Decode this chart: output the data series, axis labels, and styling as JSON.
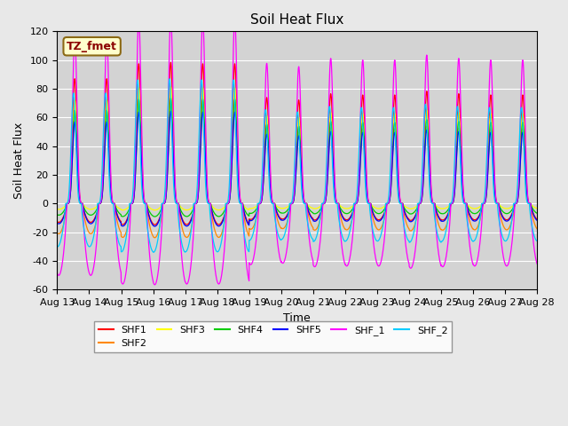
{
  "title": "Soil Heat Flux",
  "xlabel": "Time",
  "ylabel": "Soil Heat Flux",
  "ylim": [
    -60,
    120
  ],
  "yticks": [
    -60,
    -40,
    -20,
    0,
    20,
    40,
    60,
    80,
    100,
    120
  ],
  "xtick_labels": [
    "Aug 13",
    "Aug 14",
    "Aug 15",
    "Aug 16",
    "Aug 17",
    "Aug 18",
    "Aug 19",
    "Aug 20",
    "Aug 21",
    "Aug 22",
    "Aug 23",
    "Aug 24",
    "Aug 25",
    "Aug 26",
    "Aug 27",
    "Aug 28"
  ],
  "n_days": 15,
  "legend_label": "TZ_fmet",
  "legend_bg": "#ffffcc",
  "legend_border": "#8b6914",
  "legend_text_color": "#8b0000",
  "fig_bg": "#e8e8e8",
  "plot_bg": "#d3d3d3",
  "series": [
    {
      "name": "SHF1",
      "color": "#ff0000",
      "amp": 87,
      "neg_amp": -13,
      "phase": 0.0
    },
    {
      "name": "SHF2",
      "color": "#ff8800",
      "amp": 60,
      "neg_amp": -21,
      "phase": 0.0
    },
    {
      "name": "SHF3",
      "color": "#ffff00",
      "amp": 72,
      "neg_amp": -4,
      "phase": 0.0
    },
    {
      "name": "SHF4",
      "color": "#00cc00",
      "amp": 65,
      "neg_amp": -8,
      "phase": 0.0
    },
    {
      "name": "SHF5",
      "color": "#0000ff",
      "amp": 57,
      "neg_amp": -14,
      "phase": 0.0
    },
    {
      "name": "SHF_1",
      "color": "#ff00ff",
      "amp": 115,
      "neg_amp": -50,
      "phase": 0.0
    },
    {
      "name": "SHF_2",
      "color": "#00ccff",
      "amp": 77,
      "neg_amp": -30,
      "phase": 0.04
    }
  ],
  "day_amplitudes": [
    1.0,
    1.0,
    1.12,
    1.13,
    1.12,
    1.12,
    0.85,
    0.83,
    0.88,
    0.87,
    0.87,
    0.9,
    0.88,
    0.87,
    0.87
  ]
}
